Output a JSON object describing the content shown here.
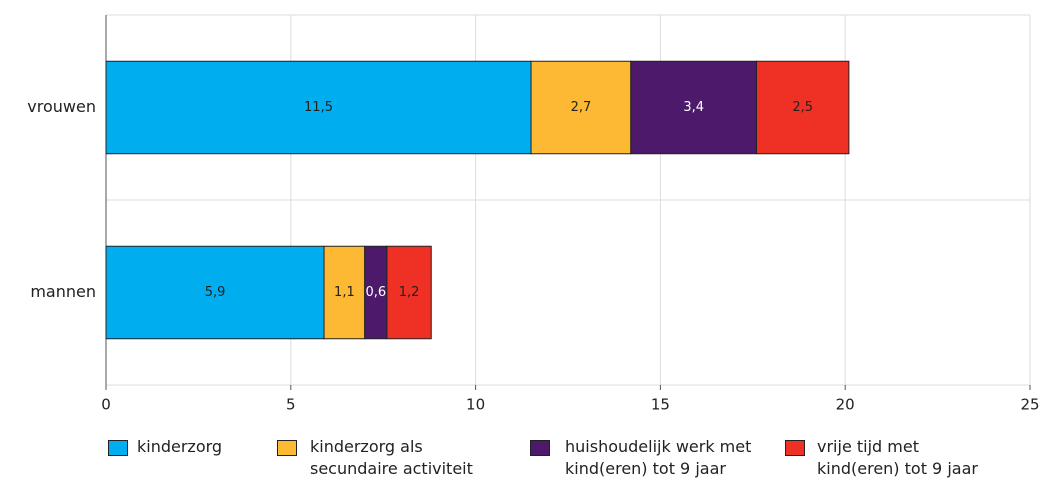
{
  "chart_data": {
    "type": "stacked-barh",
    "categories": [
      "vrouwen",
      "mannen"
    ],
    "series": [
      {
        "name": "kinderzorg",
        "color": "#00aeef",
        "values": [
          11.5,
          5.9
        ],
        "value_labels": [
          "11,5",
          "5,9"
        ]
      },
      {
        "name": "kinderzorg als\nsecundaire activiteit",
        "color": "#fdb933",
        "values": [
          2.7,
          1.1
        ],
        "value_labels": [
          "2,7",
          "1,1"
        ]
      },
      {
        "name": "huishoudelijk werk met\nkind(eren) tot 9 jaar",
        "color": "#4d1a6b",
        "values": [
          3.4,
          0.6
        ],
        "value_labels": [
          "3,4",
          "0,6"
        ]
      },
      {
        "name": "vrije tijd met\nkind(eren) tot 9 jaar",
        "color": "#ee3124",
        "values": [
          2.5,
          1.2
        ],
        "value_labels": [
          "2,5",
          "1,2"
        ]
      }
    ],
    "xlim": [
      0,
      25
    ],
    "xticks": [
      0,
      5,
      10,
      15,
      20,
      25
    ],
    "grid": true
  }
}
